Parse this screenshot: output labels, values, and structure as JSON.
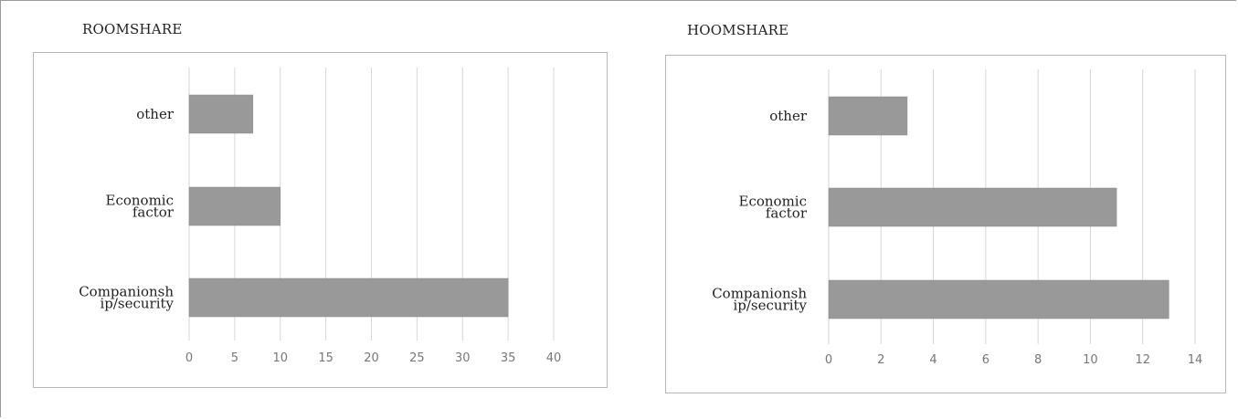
{
  "chart_data": [
    {
      "type": "bar",
      "orientation": "horizontal",
      "title": "ROOMSHARE",
      "categories": [
        "other",
        "Economic factor",
        "Companionship/security"
      ],
      "category_lines": [
        [
          "other"
        ],
        [
          "Economic",
          "factor"
        ],
        [
          "Companionsh",
          "ip/security"
        ]
      ],
      "values": [
        7,
        10,
        35
      ],
      "xlim": [
        0,
        40
      ],
      "xticks": [
        0,
        5,
        10,
        15,
        20,
        25,
        30,
        35,
        40
      ],
      "grid": true,
      "bar_color": "#999999"
    },
    {
      "type": "bar",
      "orientation": "horizontal",
      "title": "HOOMSHARE",
      "categories": [
        "other",
        "Economic factor",
        "Companionship/security"
      ],
      "category_lines": [
        [
          "other"
        ],
        [
          "Economic",
          "factor"
        ],
        [
          "Companionsh",
          "ip/security"
        ]
      ],
      "values": [
        3,
        11,
        13
      ],
      "xlim": [
        0,
        14
      ],
      "xticks": [
        0,
        2,
        4,
        6,
        8,
        10,
        12,
        14
      ],
      "grid": true,
      "bar_color": "#999999"
    }
  ]
}
